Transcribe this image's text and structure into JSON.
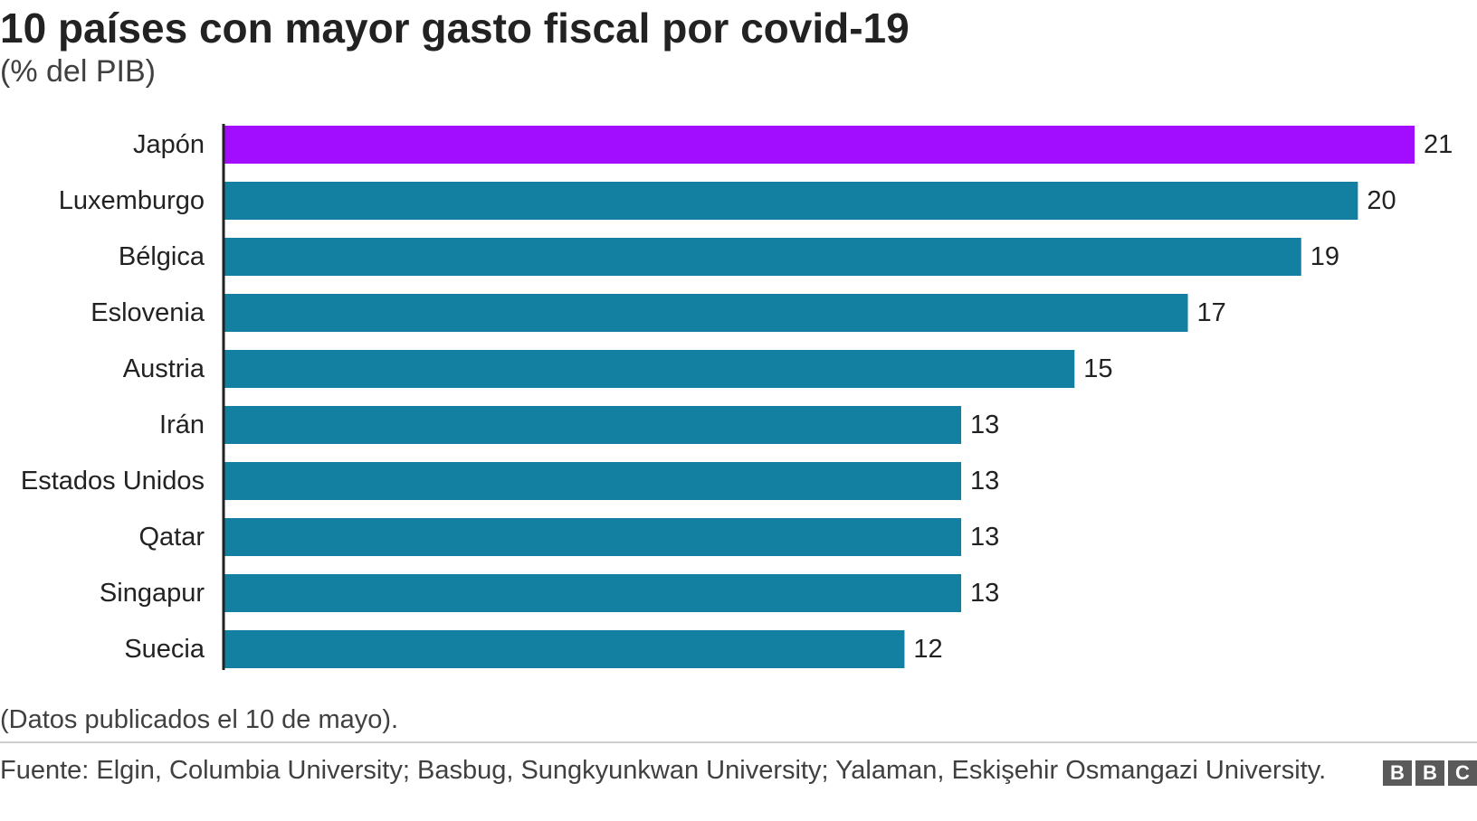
{
  "title": "10 países con mayor gasto fiscal por covid-19",
  "subtitle": "(% del PIB)",
  "note": "(Datos publicados el 10 de mayo).",
  "source": "Fuente: Elgin, Columbia University; Basbug, Sungkyunkwan University; Yalaman, Eskişehir Osmangazi University.",
  "logo": {
    "letters": [
      "B",
      "B",
      "C"
    ],
    "color": "#5a5a5a"
  },
  "colors": {
    "highlight": "#a30dff",
    "bar": "#1380a1",
    "axis": "#222222",
    "text": "#222222"
  },
  "chart_data": {
    "type": "bar",
    "orientation": "horizontal",
    "categories": [
      "Japón",
      "Luxemburgo",
      "Bélgica",
      "Eslovenia",
      "Austria",
      "Irán",
      "Estados Unidos",
      "Qatar",
      "Singapur",
      "Suecia"
    ],
    "values": [
      21,
      20,
      19,
      17,
      15,
      13,
      13,
      13,
      13,
      12
    ],
    "data_labels": [
      "21",
      "20",
      "19",
      "17",
      "15",
      "13",
      "13",
      "13",
      "13",
      "12"
    ],
    "highlight_index": 0,
    "xlabel": "",
    "ylabel": "",
    "xlim": [
      0,
      21
    ],
    "grid": false,
    "legend": "none"
  }
}
